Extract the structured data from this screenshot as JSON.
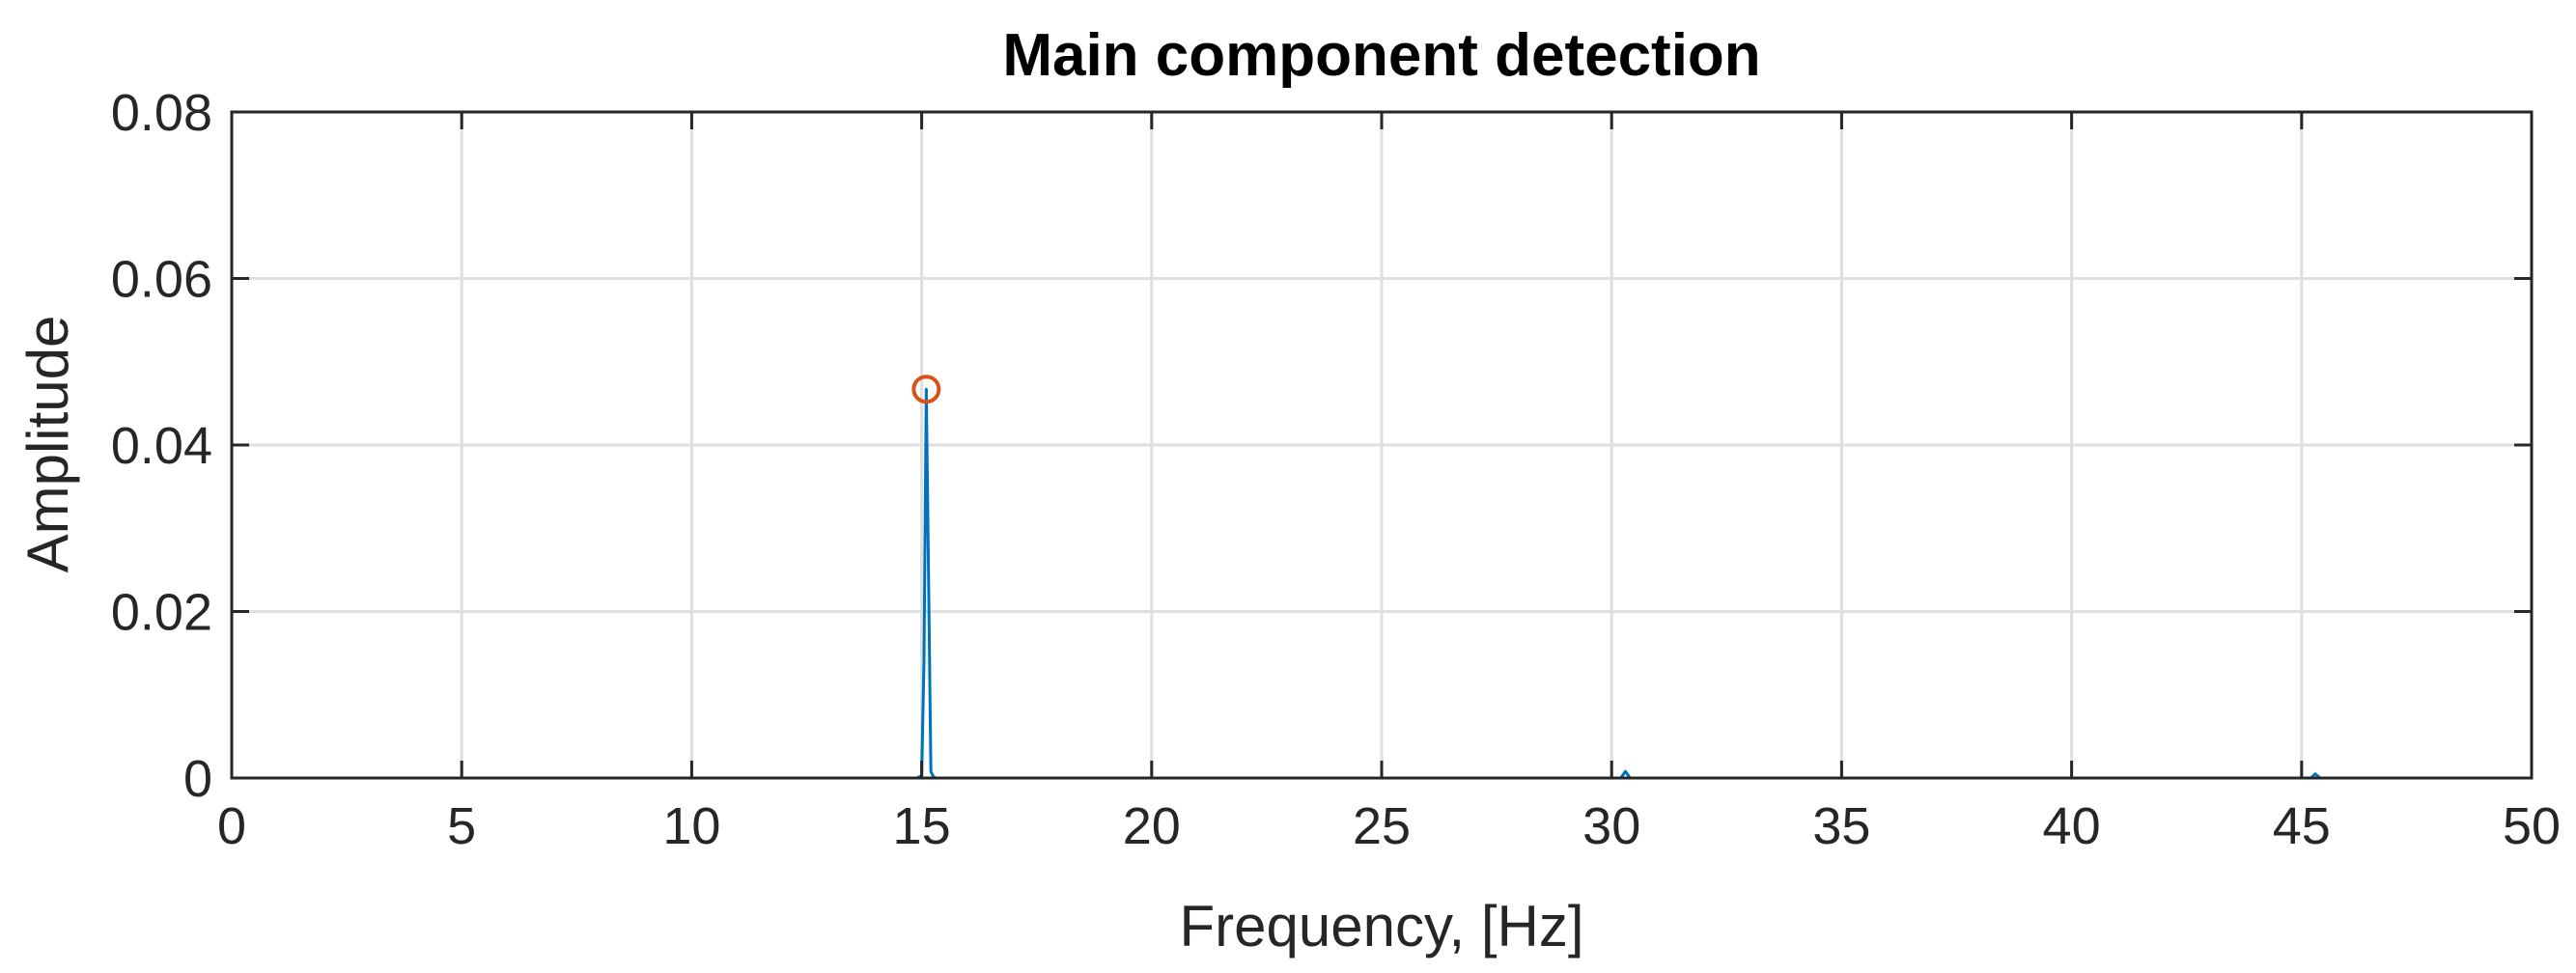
{
  "chart_data": {
    "type": "line",
    "title": "Main component detection",
    "xlabel": "Frequency, [Hz]",
    "ylabel": "Amplitude",
    "xlim": [
      0,
      50
    ],
    "ylim": [
      0,
      0.08
    ],
    "x_ticks": [
      0,
      5,
      10,
      15,
      20,
      25,
      30,
      35,
      40,
      45,
      50
    ],
    "x_tick_labels": [
      "0",
      "5",
      "10",
      "15",
      "20",
      "25",
      "30",
      "35",
      "40",
      "45",
      "50"
    ],
    "y_ticks": [
      0,
      0.02,
      0.04,
      0.06,
      0.08
    ],
    "y_tick_labels": [
      "0",
      "0.02",
      "0.04",
      "0.06",
      "0.08"
    ],
    "grid": true,
    "series": [
      {
        "color": "#0072bd",
        "x": [
          0,
          14.9,
          15.0,
          15.05,
          15.1,
          15.15,
          15.2,
          15.25,
          15.3,
          30.2,
          30.3,
          30.4,
          45.2,
          45.3,
          45.4,
          50
        ],
        "y": [
          0,
          0,
          0.0003,
          0.014,
          0.0467,
          0.024,
          0.0008,
          0.0002,
          0,
          0,
          0.0008,
          0,
          0,
          0.0005,
          0,
          0
        ]
      }
    ],
    "markers": [
      {
        "x": 15.1,
        "y": 0.0467,
        "shape": "circle",
        "color": "#d95319"
      }
    ]
  }
}
